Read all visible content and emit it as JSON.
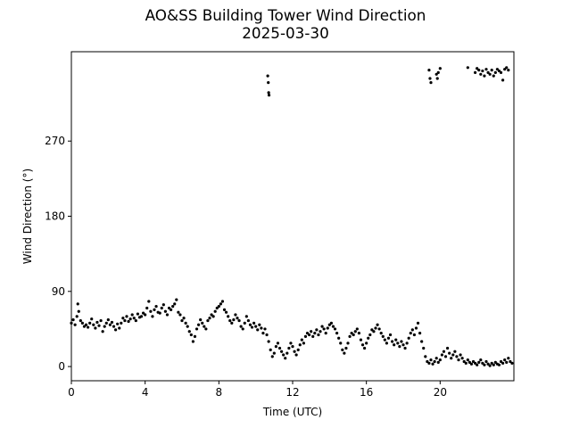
{
  "chart_data": {
    "type": "scatter",
    "title": "AO&SS Building Tower Wind Direction",
    "subtitle": "2025-03-30",
    "xlabel": "Time (UTC)",
    "ylabel": "Wind Direction (°)",
    "xlim": [
      0,
      24
    ],
    "ylim": [
      -17,
      377
    ],
    "xticks": [
      0,
      4,
      8,
      12,
      16,
      20
    ],
    "xtick_labels": [
      "0",
      "4",
      "8",
      "12",
      "16",
      "20"
    ],
    "yticks": [
      0,
      90,
      180,
      270
    ],
    "ytick_labels": [
      "0",
      "90",
      "180",
      "270"
    ],
    "grid": false,
    "marker_color": "#000000",
    "series": [
      {
        "points": [
          [
            0.0,
            52
          ],
          [
            0.1,
            56
          ],
          [
            0.2,
            50
          ],
          [
            0.3,
            60
          ],
          [
            0.35,
            75
          ],
          [
            0.4,
            66
          ],
          [
            0.5,
            55
          ],
          [
            0.6,
            52
          ],
          [
            0.7,
            48
          ],
          [
            0.8,
            50
          ],
          [
            0.9,
            47
          ],
          [
            1.0,
            52
          ],
          [
            1.1,
            57
          ],
          [
            1.2,
            50
          ],
          [
            1.3,
            46
          ],
          [
            1.4,
            53
          ],
          [
            1.5,
            49
          ],
          [
            1.6,
            55
          ],
          [
            1.7,
            42
          ],
          [
            1.8,
            48
          ],
          [
            1.9,
            52
          ],
          [
            2.0,
            56
          ],
          [
            2.1,
            50
          ],
          [
            2.2,
            53
          ],
          [
            2.3,
            48
          ],
          [
            2.4,
            44
          ],
          [
            2.5,
            51
          ],
          [
            2.6,
            46
          ],
          [
            2.7,
            52
          ],
          [
            2.8,
            58
          ],
          [
            2.9,
            55
          ],
          [
            3.0,
            60
          ],
          [
            3.1,
            54
          ],
          [
            3.2,
            57
          ],
          [
            3.3,
            62
          ],
          [
            3.4,
            58
          ],
          [
            3.5,
            55
          ],
          [
            3.6,
            63
          ],
          [
            3.7,
            59
          ],
          [
            3.8,
            60
          ],
          [
            3.9,
            64
          ],
          [
            4.0,
            62
          ],
          [
            4.1,
            70
          ],
          [
            4.2,
            78
          ],
          [
            4.3,
            66
          ],
          [
            4.4,
            60
          ],
          [
            4.5,
            68
          ],
          [
            4.6,
            72
          ],
          [
            4.7,
            65
          ],
          [
            4.8,
            64
          ],
          [
            4.9,
            70
          ],
          [
            5.0,
            74
          ],
          [
            5.1,
            66
          ],
          [
            5.2,
            62
          ],
          [
            5.3,
            70
          ],
          [
            5.4,
            68
          ],
          [
            5.5,
            72
          ],
          [
            5.6,
            75
          ],
          [
            5.7,
            80
          ],
          [
            5.8,
            65
          ],
          [
            5.9,
            62
          ],
          [
            6.0,
            55
          ],
          [
            6.1,
            58
          ],
          [
            6.2,
            52
          ],
          [
            6.3,
            48
          ],
          [
            6.4,
            42
          ],
          [
            6.5,
            38
          ],
          [
            6.6,
            30
          ],
          [
            6.7,
            36
          ],
          [
            6.8,
            45
          ],
          [
            6.9,
            50
          ],
          [
            7.0,
            56
          ],
          [
            7.1,
            52
          ],
          [
            7.2,
            48
          ],
          [
            7.3,
            45
          ],
          [
            7.4,
            55
          ],
          [
            7.5,
            58
          ],
          [
            7.6,
            62
          ],
          [
            7.7,
            60
          ],
          [
            7.8,
            66
          ],
          [
            7.9,
            70
          ],
          [
            8.0,
            72
          ],
          [
            8.1,
            75
          ],
          [
            8.2,
            78
          ],
          [
            8.3,
            68
          ],
          [
            8.4,
            65
          ],
          [
            8.5,
            60
          ],
          [
            8.6,
            55
          ],
          [
            8.7,
            52
          ],
          [
            8.8,
            56
          ],
          [
            8.9,
            62
          ],
          [
            9.0,
            58
          ],
          [
            9.1,
            55
          ],
          [
            9.2,
            48
          ],
          [
            9.3,
            45
          ],
          [
            9.4,
            52
          ],
          [
            9.5,
            60
          ],
          [
            9.6,
            55
          ],
          [
            9.7,
            50
          ],
          [
            9.8,
            47
          ],
          [
            9.9,
            52
          ],
          [
            10.0,
            48
          ],
          [
            10.1,
            44
          ],
          [
            10.2,
            50
          ],
          [
            10.3,
            46
          ],
          [
            10.4,
            40
          ],
          [
            10.5,
            45
          ],
          [
            10.6,
            38
          ],
          [
            10.7,
            30
          ],
          [
            10.8,
            20
          ],
          [
            10.9,
            12
          ],
          [
            11.0,
            16
          ],
          [
            11.1,
            24
          ],
          [
            11.2,
            28
          ],
          [
            11.3,
            22
          ],
          [
            11.4,
            18
          ],
          [
            11.5,
            14
          ],
          [
            11.6,
            10
          ],
          [
            11.7,
            16
          ],
          [
            11.8,
            22
          ],
          [
            11.9,
            28
          ],
          [
            12.0,
            24
          ],
          [
            12.1,
            18
          ],
          [
            12.2,
            14
          ],
          [
            12.3,
            20
          ],
          [
            12.4,
            26
          ],
          [
            12.5,
            32
          ],
          [
            12.6,
            28
          ],
          [
            12.7,
            36
          ],
          [
            12.8,
            40
          ],
          [
            12.9,
            38
          ],
          [
            13.0,
            42
          ],
          [
            13.1,
            36
          ],
          [
            13.2,
            40
          ],
          [
            13.3,
            44
          ],
          [
            13.4,
            38
          ],
          [
            13.5,
            42
          ],
          [
            13.6,
            48
          ],
          [
            13.7,
            45
          ],
          [
            13.8,
            40
          ],
          [
            13.9,
            46
          ],
          [
            14.0,
            50
          ],
          [
            14.1,
            52
          ],
          [
            14.2,
            48
          ],
          [
            14.3,
            45
          ],
          [
            14.4,
            40
          ],
          [
            14.5,
            34
          ],
          [
            14.6,
            28
          ],
          [
            14.7,
            20
          ],
          [
            14.8,
            16
          ],
          [
            14.9,
            22
          ],
          [
            15.0,
            28
          ],
          [
            15.1,
            36
          ],
          [
            15.2,
            40
          ],
          [
            15.3,
            38
          ],
          [
            15.4,
            42
          ],
          [
            15.5,
            45
          ],
          [
            15.6,
            40
          ],
          [
            15.7,
            32
          ],
          [
            15.8,
            26
          ],
          [
            15.9,
            22
          ],
          [
            16.0,
            28
          ],
          [
            16.1,
            34
          ],
          [
            16.2,
            38
          ],
          [
            16.3,
            44
          ],
          [
            16.4,
            42
          ],
          [
            16.5,
            46
          ],
          [
            16.6,
            50
          ],
          [
            16.7,
            45
          ],
          [
            16.8,
            40
          ],
          [
            16.9,
            36
          ],
          [
            17.0,
            32
          ],
          [
            17.1,
            28
          ],
          [
            17.2,
            34
          ],
          [
            17.3,
            38
          ],
          [
            17.4,
            30
          ],
          [
            17.5,
            26
          ],
          [
            17.6,
            32
          ],
          [
            17.7,
            28
          ],
          [
            17.8,
            24
          ],
          [
            17.9,
            30
          ],
          [
            18.0,
            26
          ],
          [
            18.1,
            22
          ],
          [
            18.2,
            28
          ],
          [
            18.3,
            34
          ],
          [
            18.4,
            40
          ],
          [
            18.5,
            44
          ],
          [
            18.6,
            38
          ],
          [
            18.7,
            46
          ],
          [
            18.8,
            52
          ],
          [
            18.9,
            40
          ],
          [
            19.0,
            30
          ],
          [
            19.1,
            22
          ],
          [
            19.2,
            12
          ],
          [
            19.3,
            6
          ],
          [
            19.4,
            4
          ],
          [
            19.5,
            8
          ],
          [
            19.6,
            3
          ],
          [
            19.7,
            6
          ],
          [
            19.8,
            10
          ],
          [
            19.9,
            5
          ],
          [
            20.0,
            8
          ],
          [
            20.1,
            14
          ],
          [
            20.2,
            18
          ],
          [
            20.3,
            12
          ],
          [
            20.4,
            22
          ],
          [
            20.5,
            16
          ],
          [
            20.6,
            10
          ],
          [
            20.7,
            14
          ],
          [
            20.8,
            18
          ],
          [
            20.9,
            12
          ],
          [
            21.0,
            8
          ],
          [
            21.1,
            14
          ],
          [
            21.2,
            10
          ],
          [
            21.3,
            6
          ],
          [
            21.4,
            4
          ],
          [
            21.5,
            8
          ],
          [
            21.6,
            5
          ],
          [
            21.7,
            3
          ],
          [
            21.8,
            6
          ],
          [
            21.9,
            4
          ],
          [
            22.0,
            2
          ],
          [
            22.1,
            5
          ],
          [
            22.2,
            8
          ],
          [
            22.3,
            4
          ],
          [
            22.4,
            2
          ],
          [
            22.5,
            6
          ],
          [
            22.6,
            3
          ],
          [
            22.7,
            1
          ],
          [
            22.8,
            4
          ],
          [
            22.9,
            2
          ],
          [
            23.0,
            5
          ],
          [
            23.1,
            3
          ],
          [
            23.2,
            2
          ],
          [
            23.3,
            6
          ],
          [
            23.4,
            4
          ],
          [
            23.5,
            8
          ],
          [
            23.6,
            5
          ],
          [
            23.7,
            10
          ],
          [
            23.8,
            6
          ],
          [
            23.9,
            4
          ],
          [
            10.65,
            348
          ],
          [
            10.68,
            340
          ],
          [
            10.7,
            328
          ],
          [
            10.72,
            325
          ],
          [
            19.4,
            355
          ],
          [
            19.45,
            345
          ],
          [
            19.5,
            340
          ],
          [
            19.8,
            350
          ],
          [
            19.85,
            345
          ],
          [
            19.9,
            352
          ],
          [
            20.0,
            357
          ],
          [
            21.5,
            358
          ],
          [
            21.9,
            352
          ],
          [
            22.0,
            357
          ],
          [
            22.1,
            355
          ],
          [
            22.2,
            350
          ],
          [
            22.3,
            354
          ],
          [
            22.4,
            348
          ],
          [
            22.5,
            356
          ],
          [
            22.6,
            352
          ],
          [
            22.7,
            350
          ],
          [
            22.8,
            355
          ],
          [
            22.9,
            348
          ],
          [
            23.0,
            352
          ],
          [
            23.1,
            356
          ],
          [
            23.2,
            354
          ],
          [
            23.3,
            352
          ],
          [
            23.4,
            343
          ],
          [
            23.5,
            356
          ],
          [
            23.6,
            358
          ],
          [
            23.7,
            355
          ]
        ]
      }
    ]
  }
}
